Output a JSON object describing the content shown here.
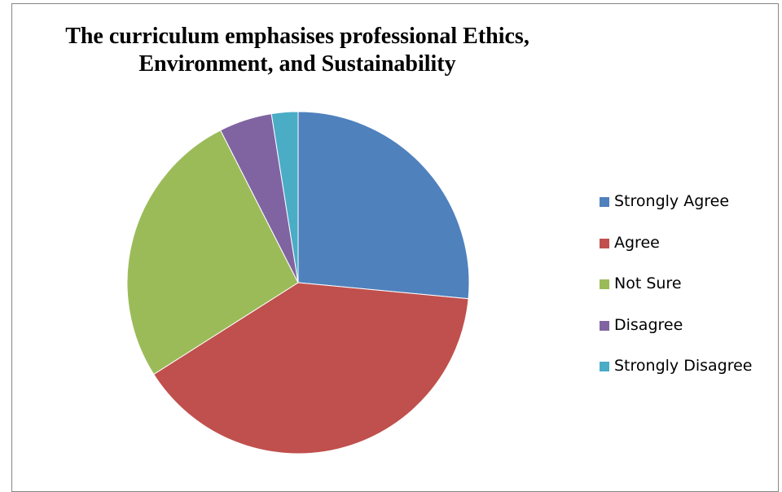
{
  "chart_data": {
    "type": "pie",
    "title_lines": [
      "The curriculum emphasises professional Ethics,",
      "Environment, and Sustainability"
    ],
    "categories": [
      "Strongly Agree",
      "Agree",
      "Not Sure",
      "Disagree",
      "Strongly Disagree"
    ],
    "values": [
      26.5,
      39.5,
      26.5,
      5,
      2.5
    ],
    "colors": [
      "#4F81BD",
      "#C0504D",
      "#9BBB59",
      "#8064A2",
      "#4BACC6"
    ],
    "start_angle_deg": 0,
    "direction": "clockwise",
    "legend_position": "right"
  }
}
